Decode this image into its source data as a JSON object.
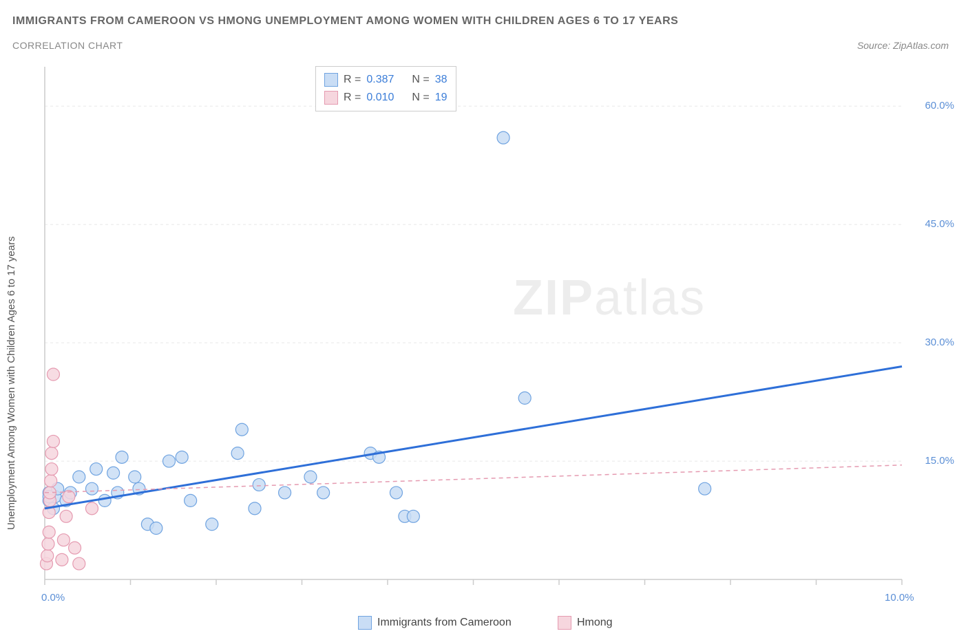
{
  "title": "IMMIGRANTS FROM CAMEROON VS HMONG UNEMPLOYMENT AMONG WOMEN WITH CHILDREN AGES 6 TO 17 YEARS",
  "subtitle": "CORRELATION CHART",
  "source": "Source: ZipAtlas.com",
  "y_axis_label": "Unemployment Among Women with Children Ages 6 to 17 years",
  "watermark_a": "ZIP",
  "watermark_b": "atlas",
  "chart": {
    "type": "scatter",
    "background_color": "#ffffff",
    "grid_color": "#e8e8e8",
    "axis_color": "#cccccc",
    "xlim": [
      0.0,
      10.0
    ],
    "ylim": [
      0.0,
      65.0
    ],
    "x_ticks": [
      0.0,
      1.0,
      2.0,
      3.0,
      4.0,
      5.0,
      6.0,
      7.0,
      8.0,
      9.0,
      10.0
    ],
    "x_tick_labels": {
      "0": "0.0%",
      "10": "10.0%"
    },
    "y_ticks": [
      15.0,
      30.0,
      45.0,
      60.0
    ],
    "y_tick_labels": [
      "15.0%",
      "30.0%",
      "45.0%",
      "60.0%"
    ],
    "series": [
      {
        "name": "Immigrants from Cameroon",
        "color_fill": "#c9ddf5",
        "color_stroke": "#6fa3e0",
        "marker_radius": 9,
        "R": "0.387",
        "N": "38",
        "trend": {
          "color": "#2e6fd8",
          "width": 3,
          "dash": "none",
          "y_at_x0": 9.0,
          "y_at_x10": 27.0
        },
        "points": [
          [
            0.05,
            10.0
          ],
          [
            0.05,
            11.0
          ],
          [
            0.1,
            9.0
          ],
          [
            0.12,
            10.5
          ],
          [
            0.15,
            11.5
          ],
          [
            0.25,
            10.0
          ],
          [
            0.3,
            11.0
          ],
          [
            0.4,
            13.0
          ],
          [
            0.55,
            11.5
          ],
          [
            0.6,
            14.0
          ],
          [
            0.7,
            10.0
          ],
          [
            0.8,
            13.5
          ],
          [
            0.85,
            11.0
          ],
          [
            0.9,
            15.5
          ],
          [
            1.05,
            13.0
          ],
          [
            1.1,
            11.5
          ],
          [
            1.2,
            7.0
          ],
          [
            1.3,
            6.5
          ],
          [
            1.45,
            15.0
          ],
          [
            1.6,
            15.5
          ],
          [
            1.7,
            10.0
          ],
          [
            1.95,
            7.0
          ],
          [
            2.25,
            16.0
          ],
          [
            2.3,
            19.0
          ],
          [
            2.45,
            9.0
          ],
          [
            2.5,
            12.0
          ],
          [
            2.8,
            11.0
          ],
          [
            3.1,
            13.0
          ],
          [
            3.25,
            11.0
          ],
          [
            3.8,
            16.0
          ],
          [
            3.9,
            15.5
          ],
          [
            4.1,
            11.0
          ],
          [
            4.2,
            8.0
          ],
          [
            4.3,
            8.0
          ],
          [
            5.35,
            56.0
          ],
          [
            5.6,
            23.0
          ],
          [
            7.7,
            11.5
          ],
          [
            0.05,
            10.5
          ]
        ]
      },
      {
        "name": "Hmong",
        "color_fill": "#f6d6de",
        "color_stroke": "#e59ab0",
        "marker_radius": 9,
        "R": "0.010",
        "N": "19",
        "trend": {
          "color": "#e59ab0",
          "width": 1.5,
          "dash": "6,5",
          "y_at_x0": 11.0,
          "y_at_x10": 14.5
        },
        "points": [
          [
            0.02,
            2.0
          ],
          [
            0.03,
            3.0
          ],
          [
            0.04,
            4.5
          ],
          [
            0.05,
            6.0
          ],
          [
            0.05,
            8.5
          ],
          [
            0.06,
            10.0
          ],
          [
            0.06,
            11.0
          ],
          [
            0.07,
            12.5
          ],
          [
            0.08,
            14.0
          ],
          [
            0.08,
            16.0
          ],
          [
            0.1,
            17.5
          ],
          [
            0.1,
            26.0
          ],
          [
            0.2,
            2.5
          ],
          [
            0.22,
            5.0
          ],
          [
            0.25,
            8.0
          ],
          [
            0.28,
            10.5
          ],
          [
            0.35,
            4.0
          ],
          [
            0.4,
            2.0
          ],
          [
            0.55,
            9.0
          ]
        ]
      }
    ],
    "legend_bottom": [
      {
        "label": "Immigrants from Cameroon",
        "fill": "#c9ddf5",
        "stroke": "#6fa3e0"
      },
      {
        "label": "Hmong",
        "fill": "#f6d6de",
        "stroke": "#e59ab0"
      }
    ]
  }
}
